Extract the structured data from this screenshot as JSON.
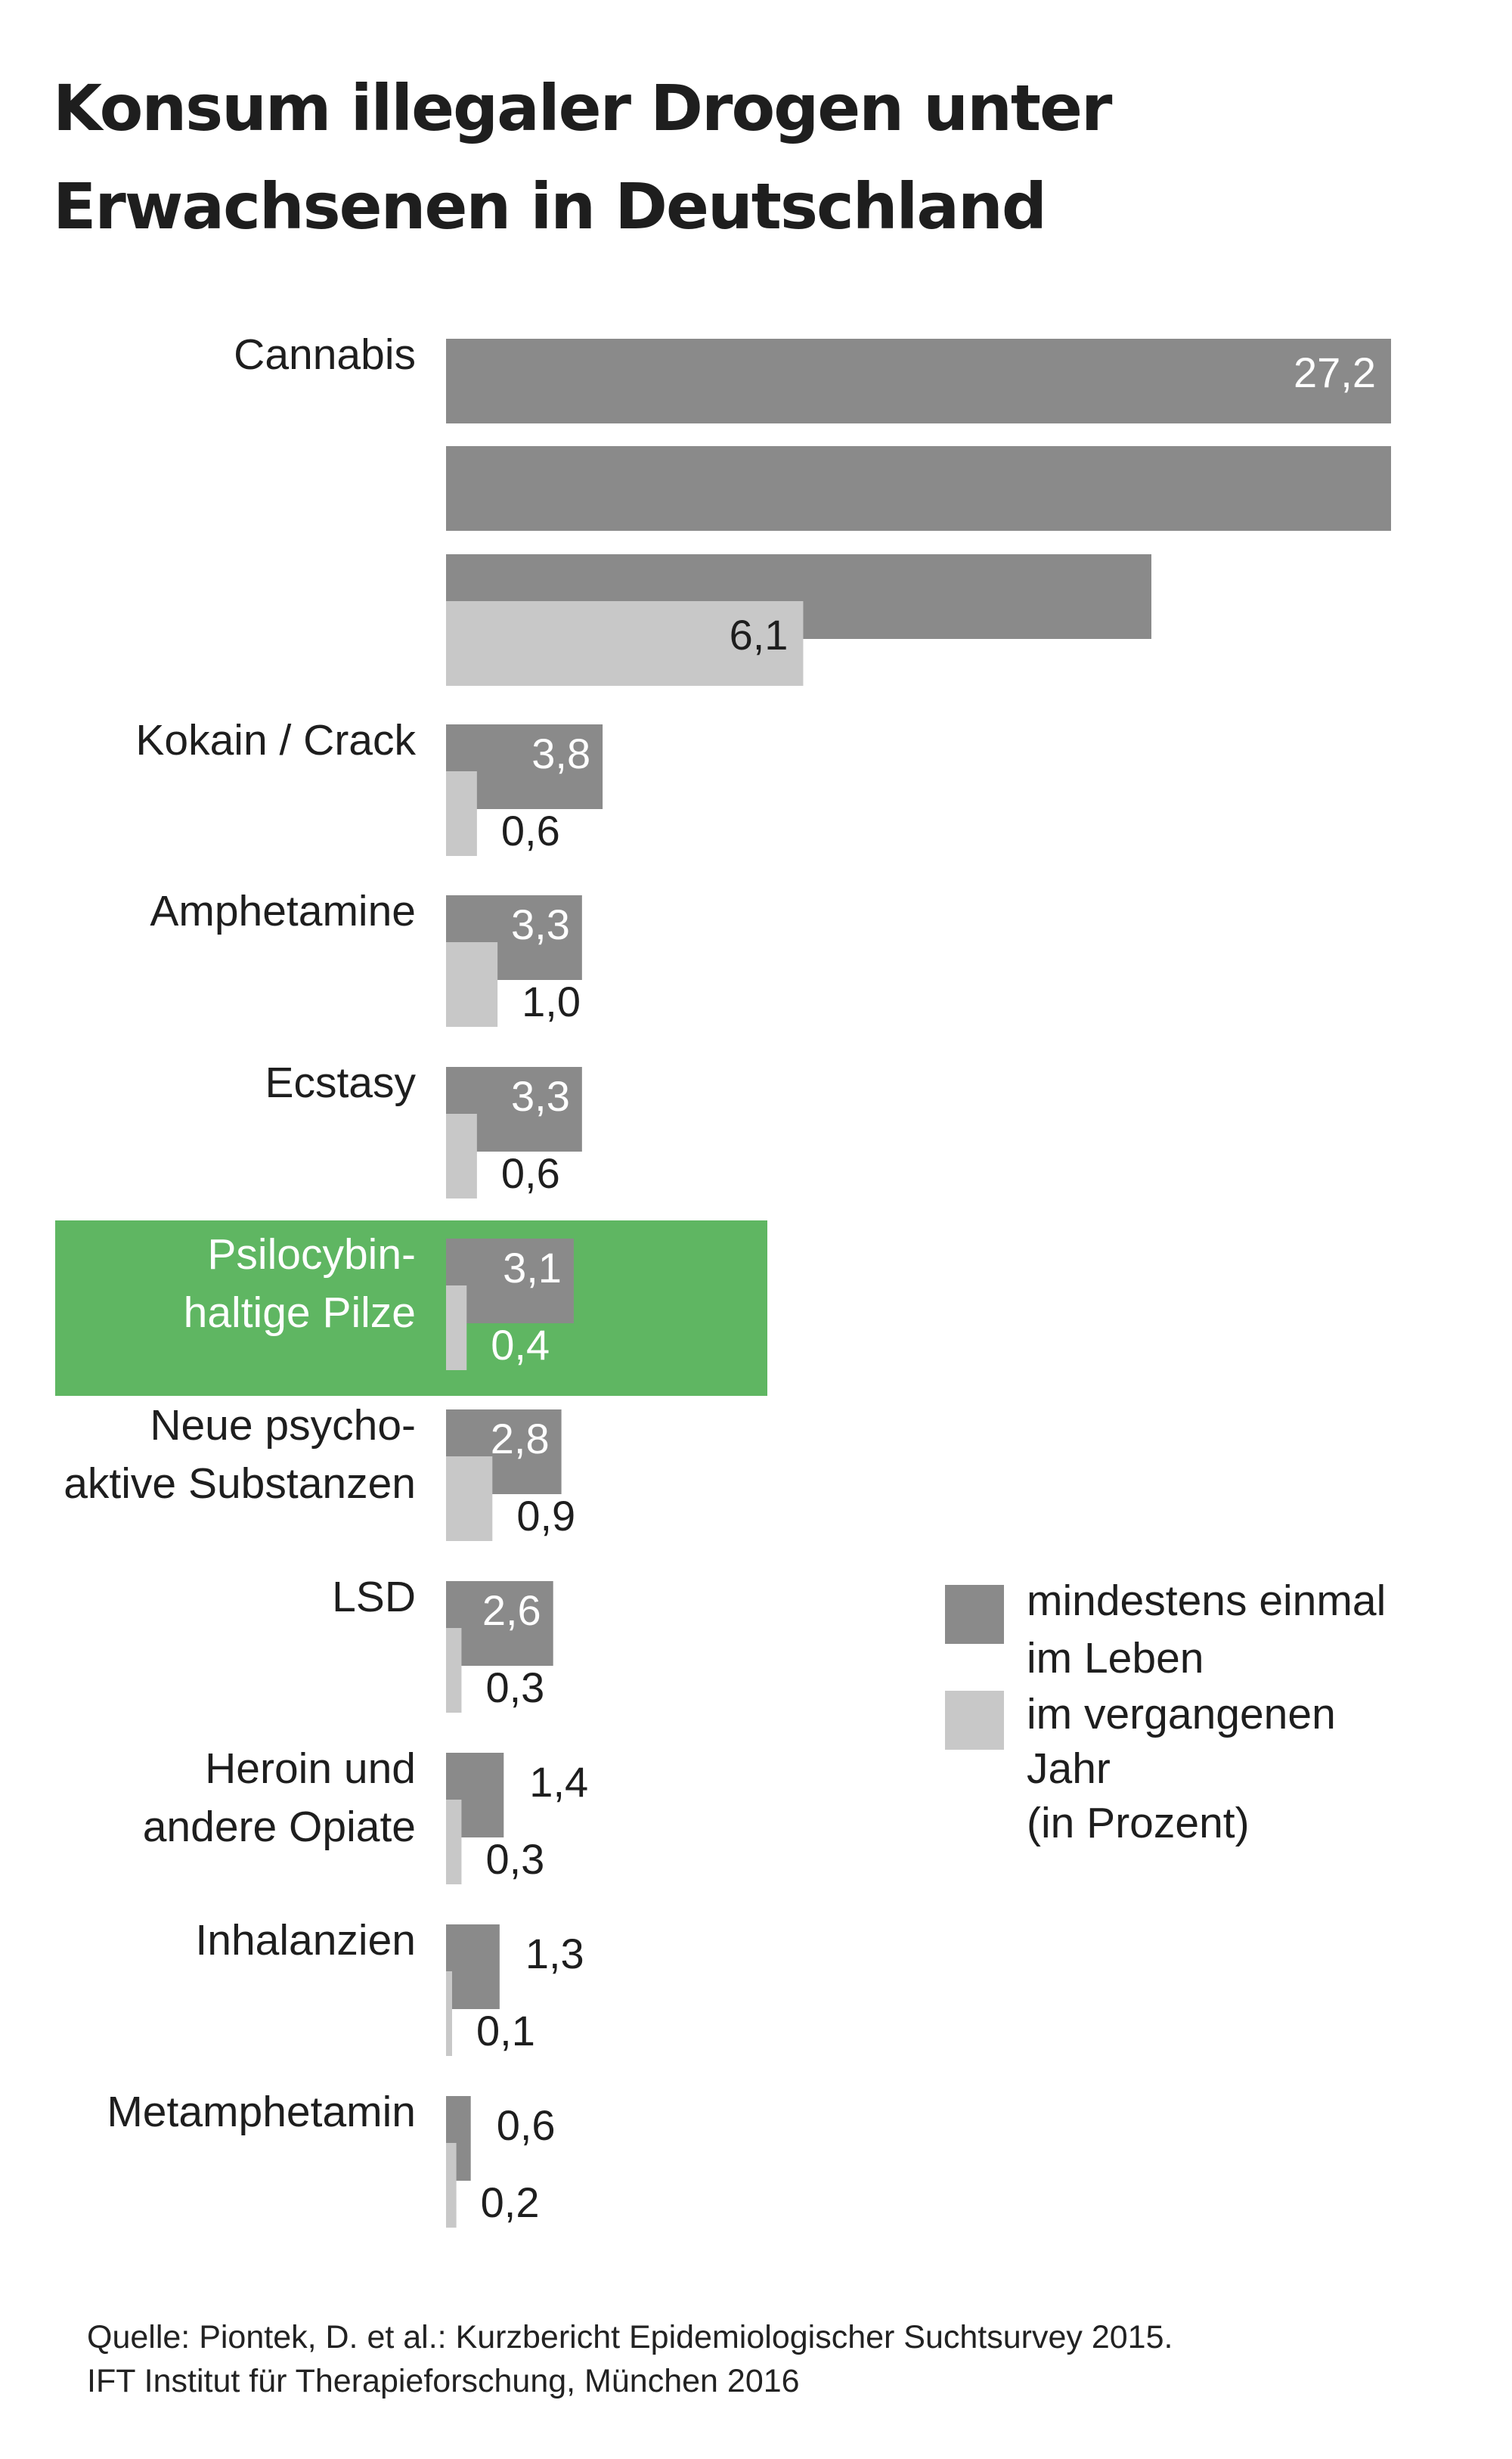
{
  "title_lines": [
    "Konsum illegaler Drogen unter",
    "Erwachsenen in Deutschland"
  ],
  "source_lines": [
    "Quelle: Piontek, D. et al.: Kurzbericht Epidemiologischer Suchtsurvey 2015.",
    "IFT Institut für Therapieforschung, München 2016"
  ],
  "colors": {
    "lifetime": "#8a8a8a",
    "past_year": "#c8c8c8",
    "highlight": "#5fb662",
    "label_text": "#1e1e1e",
    "highlight_text": "#ffffff",
    "title_text": "#1e1e1e"
  },
  "legend": {
    "lifetime_lines": [
      "mindestens einmal",
      "im Leben"
    ],
    "past_year_lines": [
      "im vergangenen",
      "Jahr",
      "(in Prozent)"
    ]
  },
  "chart_data": {
    "type": "bar",
    "orientation": "horizontal",
    "title": "Konsum illegaler Drogen unter Erwachsenen in Deutschland",
    "unit": "Prozent",
    "categories": [
      {
        "lines": [
          "Cannabis"
        ]
      },
      {
        "lines": [
          "Kokain / Crack"
        ]
      },
      {
        "lines": [
          "Amphetamine"
        ]
      },
      {
        "lines": [
          "Ecstasy"
        ]
      },
      {
        "lines": [
          "Psilocybin-",
          "haltige Pilze"
        ],
        "highlight": true
      },
      {
        "lines": [
          "Neue psycho-",
          "aktive Substanzen"
        ]
      },
      {
        "lines": [
          "LSD"
        ]
      },
      {
        "lines": [
          "Heroin und",
          "andere Opiate"
        ]
      },
      {
        "lines": [
          "Inhalanzien"
        ]
      },
      {
        "lines": [
          "Metamphetamin"
        ]
      }
    ],
    "series": [
      {
        "name": "mindestens einmal im Leben",
        "values": [
          27.2,
          3.8,
          3.3,
          3.3,
          3.1,
          2.8,
          2.6,
          1.4,
          1.3,
          0.6
        ],
        "labels": [
          "27,2",
          "3,8",
          "3,3",
          "3,3",
          "3,1",
          "2,8",
          "2,6",
          "1,4",
          "1,3",
          "0,6"
        ]
      },
      {
        "name": "im vergangenen Jahr",
        "values": [
          6.1,
          0.6,
          1.0,
          0.6,
          0.4,
          0.9,
          0.3,
          0.3,
          0.1,
          0.2
        ],
        "labels": [
          "6,1",
          "0,6",
          "1,0",
          "0,6",
          "0,4",
          "0,9",
          "0,3",
          "0,3",
          "0,1",
          "0,2"
        ]
      }
    ],
    "axis_break": {
      "category": "Cannabis",
      "series": "mindestens einmal im Leben",
      "segments": 3
    },
    "grid": false,
    "legend_position": "right"
  }
}
